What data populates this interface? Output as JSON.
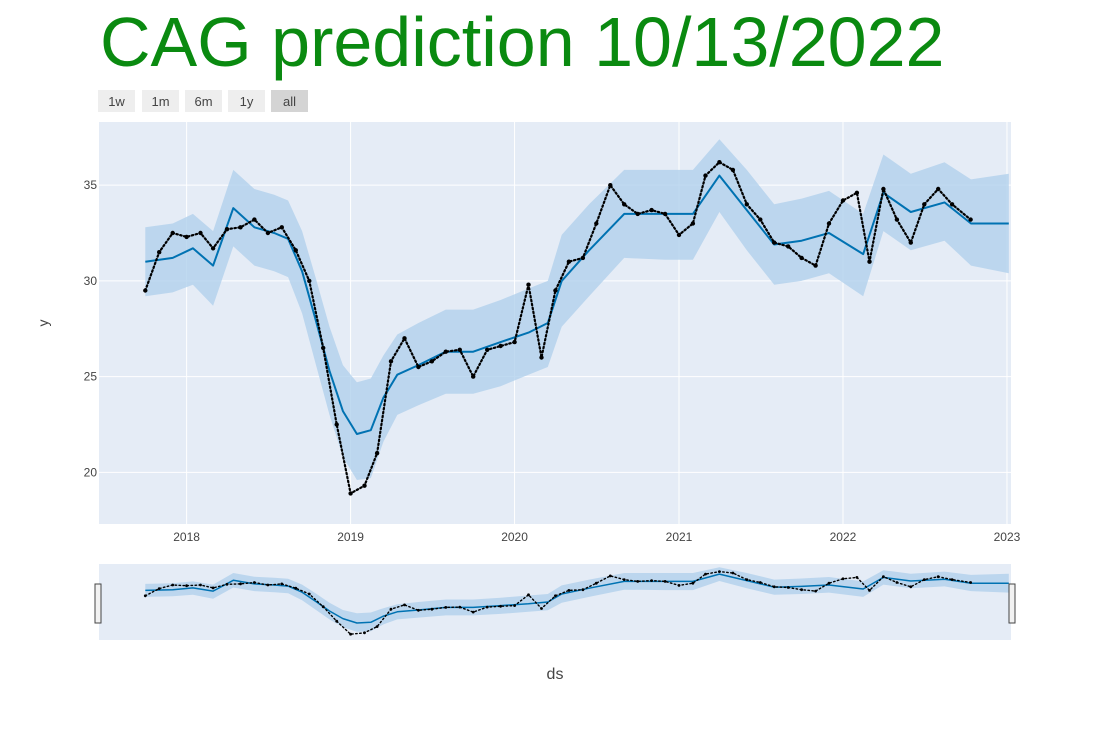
{
  "title": "CAG prediction 10/13/2022",
  "colors": {
    "title": "#0a8a10",
    "plot_bg": "#e5ecf6",
    "grid": "#ffffff",
    "actual": "#000000",
    "forecast": "#0072b2",
    "band": "#b2d1ec",
    "axis_text": "#444444",
    "button_bg": "#eeeeee",
    "button_active_bg": "#d4d4d4"
  },
  "range_selector": [
    {
      "label": "1w",
      "active": false
    },
    {
      "label": "1m",
      "active": false
    },
    {
      "label": "6m",
      "active": false
    },
    {
      "label": "1y",
      "active": false
    },
    {
      "label": "all",
      "active": true
    }
  ],
  "chart_data": {
    "type": "line",
    "xlabel": "ds",
    "ylabel": "y",
    "x_type": "date",
    "xlim": [
      "2017-06-20",
      "2023-01-10"
    ],
    "ylim": [
      17.3,
      38.3
    ],
    "x_ticks": [
      {
        "date": "2018-01-01",
        "label": "2018"
      },
      {
        "date": "2019-01-01",
        "label": "2019"
      },
      {
        "date": "2020-01-01",
        "label": "2020"
      },
      {
        "date": "2021-01-01",
        "label": "2021"
      },
      {
        "date": "2022-01-01",
        "label": "2022"
      },
      {
        "date": "2023-01-01",
        "label": "2023"
      }
    ],
    "y_ticks": [
      20,
      25,
      30,
      35
    ],
    "grid": true,
    "range_slider": true,
    "series": [
      {
        "kind": "band",
        "points": [
          [
            "2017-10-01",
            29.2,
            32.8
          ],
          [
            "2017-12-01",
            29.4,
            33.0
          ],
          [
            "2018-01-15",
            29.8,
            33.5
          ],
          [
            "2018-03-01",
            28.7,
            32.6
          ],
          [
            "2018-04-15",
            31.8,
            35.8
          ],
          [
            "2018-06-01",
            30.8,
            34.8
          ],
          [
            "2018-07-15",
            30.5,
            34.5
          ],
          [
            "2018-08-15",
            30.2,
            34.2
          ],
          [
            "2018-09-15",
            28.3,
            32.6
          ],
          [
            "2018-10-15",
            25.7,
            30.2
          ],
          [
            "2018-11-15",
            23.0,
            27.6
          ],
          [
            "2018-12-15",
            20.8,
            25.6
          ],
          [
            "2019-01-15",
            19.6,
            24.7
          ],
          [
            "2019-02-15",
            19.7,
            24.9
          ],
          [
            "2019-03-15",
            21.6,
            26.1
          ],
          [
            "2019-04-15",
            23.0,
            27.2
          ],
          [
            "2019-06-01",
            23.5,
            27.8
          ],
          [
            "2019-08-01",
            24.1,
            28.5
          ],
          [
            "2019-10-01",
            24.1,
            28.5
          ],
          [
            "2019-12-01",
            24.5,
            29.0
          ],
          [
            "2020-02-01",
            25.1,
            29.6
          ],
          [
            "2020-03-15",
            25.5,
            30.0
          ],
          [
            "2020-04-15",
            27.6,
            32.4
          ],
          [
            "2020-06-15",
            29.2,
            34.0
          ],
          [
            "2020-09-01",
            31.2,
            35.8
          ],
          [
            "2020-12-01",
            31.1,
            35.8
          ],
          [
            "2021-02-01",
            31.1,
            35.8
          ],
          [
            "2021-04-01",
            33.6,
            37.4
          ],
          [
            "2021-06-01",
            31.6,
            35.8
          ],
          [
            "2021-08-01",
            29.8,
            34.0
          ],
          [
            "2021-10-01",
            30.0,
            34.3
          ],
          [
            "2021-12-01",
            30.4,
            34.7
          ],
          [
            "2022-02-15",
            29.2,
            33.5
          ],
          [
            "2022-04-01",
            32.6,
            36.6
          ],
          [
            "2022-06-01",
            31.6,
            35.6
          ],
          [
            "2022-08-15",
            32.1,
            36.2
          ],
          [
            "2022-10-13",
            30.8,
            35.3
          ],
          [
            "2023-01-05",
            30.4,
            35.6
          ]
        ]
      },
      {
        "kind": "forecast",
        "points": [
          [
            "2017-10-01",
            31.0
          ],
          [
            "2017-12-01",
            31.2
          ],
          [
            "2018-01-15",
            31.7
          ],
          [
            "2018-03-01",
            30.8
          ],
          [
            "2018-04-15",
            33.8
          ],
          [
            "2018-06-01",
            32.8
          ],
          [
            "2018-07-15",
            32.5
          ],
          [
            "2018-08-15",
            32.2
          ],
          [
            "2018-09-15",
            30.5
          ],
          [
            "2018-10-15",
            28.0
          ],
          [
            "2018-11-15",
            25.3
          ],
          [
            "2018-12-15",
            23.2
          ],
          [
            "2019-01-15",
            22.0
          ],
          [
            "2019-02-15",
            22.2
          ],
          [
            "2019-03-15",
            23.9
          ],
          [
            "2019-04-15",
            25.1
          ],
          [
            "2019-06-01",
            25.6
          ],
          [
            "2019-08-01",
            26.3
          ],
          [
            "2019-10-01",
            26.3
          ],
          [
            "2019-12-01",
            26.8
          ],
          [
            "2020-02-01",
            27.3
          ],
          [
            "2020-03-15",
            27.8
          ],
          [
            "2020-04-15",
            30.0
          ],
          [
            "2020-06-15",
            31.6
          ],
          [
            "2020-09-01",
            33.5
          ],
          [
            "2020-12-01",
            33.5
          ],
          [
            "2021-02-01",
            33.5
          ],
          [
            "2021-04-01",
            35.5
          ],
          [
            "2021-06-01",
            33.7
          ],
          [
            "2021-08-01",
            31.9
          ],
          [
            "2021-10-01",
            32.1
          ],
          [
            "2021-12-01",
            32.5
          ],
          [
            "2022-02-15",
            31.4
          ],
          [
            "2022-04-01",
            34.6
          ],
          [
            "2022-06-01",
            33.6
          ],
          [
            "2022-08-15",
            34.1
          ],
          [
            "2022-10-13",
            33.0
          ],
          [
            "2023-01-05",
            33.0
          ]
        ]
      },
      {
        "kind": "actual",
        "points": [
          [
            "2017-10-01",
            29.5
          ],
          [
            "2017-11-01",
            31.5
          ],
          [
            "2017-12-01",
            32.5
          ],
          [
            "2018-01-01",
            32.3
          ],
          [
            "2018-02-01",
            32.5
          ],
          [
            "2018-03-01",
            31.7
          ],
          [
            "2018-04-01",
            32.7
          ],
          [
            "2018-05-01",
            32.8
          ],
          [
            "2018-06-01",
            33.2
          ],
          [
            "2018-07-01",
            32.5
          ],
          [
            "2018-08-01",
            32.8
          ],
          [
            "2018-09-01",
            31.6
          ],
          [
            "2018-10-01",
            30.0
          ],
          [
            "2018-11-01",
            26.5
          ],
          [
            "2018-12-01",
            22.5
          ],
          [
            "2019-01-01",
            18.9
          ],
          [
            "2019-02-01",
            19.3
          ],
          [
            "2019-03-01",
            21.0
          ],
          [
            "2019-04-01",
            25.8
          ],
          [
            "2019-05-01",
            27.0
          ],
          [
            "2019-06-01",
            25.5
          ],
          [
            "2019-07-01",
            25.8
          ],
          [
            "2019-08-01",
            26.3
          ],
          [
            "2019-09-01",
            26.4
          ],
          [
            "2019-10-01",
            25.0
          ],
          [
            "2019-11-01",
            26.4
          ],
          [
            "2019-12-01",
            26.6
          ],
          [
            "2020-01-01",
            26.8
          ],
          [
            "2020-02-01",
            29.8
          ],
          [
            "2020-03-01",
            26.0
          ],
          [
            "2020-04-01",
            29.5
          ],
          [
            "2020-05-01",
            31.0
          ],
          [
            "2020-06-01",
            31.2
          ],
          [
            "2020-07-01",
            33.0
          ],
          [
            "2020-08-01",
            35.0
          ],
          [
            "2020-09-01",
            34.0
          ],
          [
            "2020-10-01",
            33.5
          ],
          [
            "2020-11-01",
            33.7
          ],
          [
            "2020-12-01",
            33.5
          ],
          [
            "2021-01-01",
            32.4
          ],
          [
            "2021-02-01",
            33.0
          ],
          [
            "2021-03-01",
            35.5
          ],
          [
            "2021-04-01",
            36.2
          ],
          [
            "2021-05-01",
            35.8
          ],
          [
            "2021-06-01",
            34.0
          ],
          [
            "2021-07-01",
            33.2
          ],
          [
            "2021-08-01",
            32.0
          ],
          [
            "2021-09-01",
            31.8
          ],
          [
            "2021-10-01",
            31.2
          ],
          [
            "2021-11-01",
            30.8
          ],
          [
            "2021-12-01",
            33.0
          ],
          [
            "2022-01-01",
            34.2
          ],
          [
            "2022-02-01",
            34.6
          ],
          [
            "2022-03-01",
            31.0
          ],
          [
            "2022-04-01",
            34.8
          ],
          [
            "2022-05-01",
            33.2
          ],
          [
            "2022-06-01",
            32.0
          ],
          [
            "2022-07-01",
            34.0
          ],
          [
            "2022-08-01",
            34.8
          ],
          [
            "2022-09-01",
            34.0
          ],
          [
            "2022-10-12",
            33.2
          ]
        ]
      }
    ]
  }
}
